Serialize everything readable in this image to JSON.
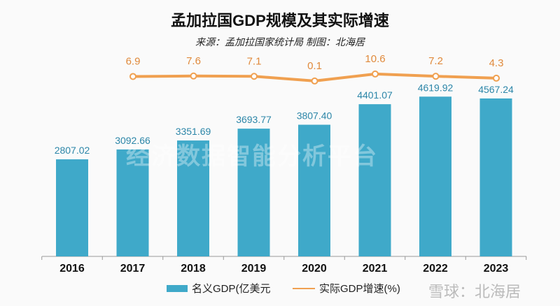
{
  "title": "孟加拉国GDP规模及其实际增速",
  "subtitle": "来源：孟加拉国家统计局 制图：北海居",
  "watermark": "经济数据智能分析平台",
  "corner_watermark": "雪球：北海居",
  "colors": {
    "bar": "#3fa9c9",
    "line": "#f0a050",
    "line_label": "#e08a3c",
    "bar_label": "#2c86a8"
  },
  "chart_data": {
    "type": "bar+line",
    "categories": [
      "2016",
      "2017",
      "2018",
      "2019",
      "2020",
      "2021",
      "2022",
      "2023"
    ],
    "series": [
      {
        "name": "名义GDP(亿美元",
        "type": "bar",
        "values": [
          2807.02,
          3092.66,
          3351.69,
          3693.77,
          3807.4,
          4401.07,
          4619.92,
          4567.24
        ]
      },
      {
        "name": "实际GDP增速(%)",
        "type": "line",
        "values": [
          null,
          6.9,
          7.6,
          7.1,
          0.1,
          10.6,
          7.2,
          4.3
        ]
      }
    ],
    "legend": "bottom",
    "grid": false
  }
}
